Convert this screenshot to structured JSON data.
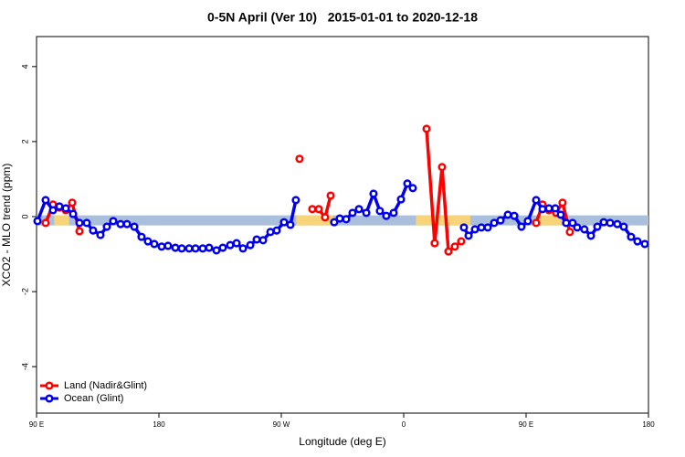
{
  "chart_data": {
    "type": "line",
    "title": "0-5N April (Ver 10)   2015-01-01 to 2020-12-18",
    "xlabel": "Longitude (deg E)",
    "ylabel": "XCO2 - MLO trend (ppm)",
    "xlim": [
      90,
      540
    ],
    "xticks": [
      {
        "value": 90,
        "label": "90 E"
      },
      180,
      {
        "value": 270,
        "label": "90 W"
      },
      {
        "value": 360,
        "label": "0"
      },
      {
        "value": 450,
        "label": "90 E"
      },
      {
        "value": 540,
        "label": "180"
      }
    ],
    "ylim": [
      -5.24,
      4.8
    ],
    "yticks": [
      -4,
      -2,
      0,
      2,
      4
    ],
    "legend": "bottomleft",
    "mask": {
      "y": -0.1,
      "ocean_color": "#a9bfdc",
      "land_color": "#f7d37a",
      "land": [
        [
          103,
          114
        ],
        [
          281,
          308
        ],
        [
          369,
          409
        ],
        [
          459,
          476
        ]
      ]
    },
    "series": [
      {
        "name": "Land (Nadir&Glint)",
        "color": "#ff0000",
        "x": [
          96.7,
          102.1,
          106.8,
          111.5,
          116.2,
          121.6,
          null,
          283.4,
          null,
          292.8,
          297.5,
          302.2,
          306.3,
          null,
          376.8,
          382.8,
          388.2,
          392.9,
          397.6,
          402.3,
          null,
          457.4,
          462.1,
          466.8,
          472.1,
          476.8,
          482.2
        ],
        "values": [
          -0.17,
          0.32,
          0.24,
          0.17,
          0.37,
          -0.39,
          null,
          1.54,
          null,
          0.2,
          0.2,
          -0.02,
          0.56,
          null,
          2.34,
          -0.71,
          1.32,
          -0.93,
          -0.8,
          -0.66,
          null,
          -0.17,
          0.32,
          0.17,
          0.1,
          0.37,
          -0.41
        ]
      },
      {
        "name": "Ocean (Glint)",
        "color": "#0000ee",
        "x": [
          90.7,
          96.7,
          102.1,
          106.8,
          111.5,
          116.9,
          121.6,
          126.9,
          131.6,
          137.0,
          141.7,
          146.4,
          151.8,
          156.5,
          161.9,
          167.2,
          171.9,
          176.6,
          182.0,
          186.7,
          192.1,
          196.8,
          202.2,
          206.9,
          212.2,
          216.9,
          222.3,
          227.0,
          232.4,
          237.1,
          241.8,
          247.2,
          251.9,
          256.6,
          262.0,
          266.6,
          272.0,
          276.7,
          280.7,
          null,
          308.9,
          313.0,
          317.7,
          322.4,
          327.1,
          332.5,
          337.8,
          342.5,
          347.2,
          352.6,
          358.0,
          362.7,
          366.7,
          null,
          404.3,
          407.7,
          412.4,
          417.1,
          421.8,
          426.5,
          431.2,
          436.6,
          441.3,
          446.6,
          451.3,
          457.4,
          462.1,
          466.8,
          471.5,
          475.5,
          479.5,
          484.2,
          487.6,
          492.9,
          497.7,
          502.4,
          507.1,
          511.8,
          517.1,
          521.8,
          527.2,
          531.9,
          537.3
        ],
        "values": [
          -0.12,
          0.44,
          0.17,
          0.27,
          0.22,
          0.07,
          -0.17,
          -0.17,
          -0.37,
          -0.49,
          -0.27,
          -0.12,
          -0.2,
          -0.2,
          -0.27,
          -0.54,
          -0.66,
          -0.73,
          -0.8,
          -0.78,
          -0.83,
          -0.85,
          -0.85,
          -0.85,
          -0.85,
          -0.83,
          -0.9,
          -0.83,
          -0.76,
          -0.71,
          -0.85,
          -0.76,
          -0.61,
          -0.63,
          -0.41,
          -0.37,
          -0.15,
          -0.22,
          0.44,
          null,
          -0.15,
          -0.05,
          -0.07,
          0.1,
          0.2,
          0.1,
          0.61,
          0.15,
          0.02,
          0.1,
          0.46,
          0.88,
          0.76,
          null,
          -0.29,
          -0.51,
          -0.34,
          -0.29,
          -0.29,
          -0.17,
          -0.1,
          0.05,
          0.02,
          -0.27,
          -0.12,
          0.44,
          0.2,
          0.22,
          0.22,
          0.05,
          -0.17,
          -0.17,
          -0.29,
          -0.34,
          -0.51,
          -0.27,
          -0.15,
          -0.17,
          -0.2,
          -0.27,
          -0.54,
          -0.66,
          -0.73
        ]
      }
    ]
  }
}
